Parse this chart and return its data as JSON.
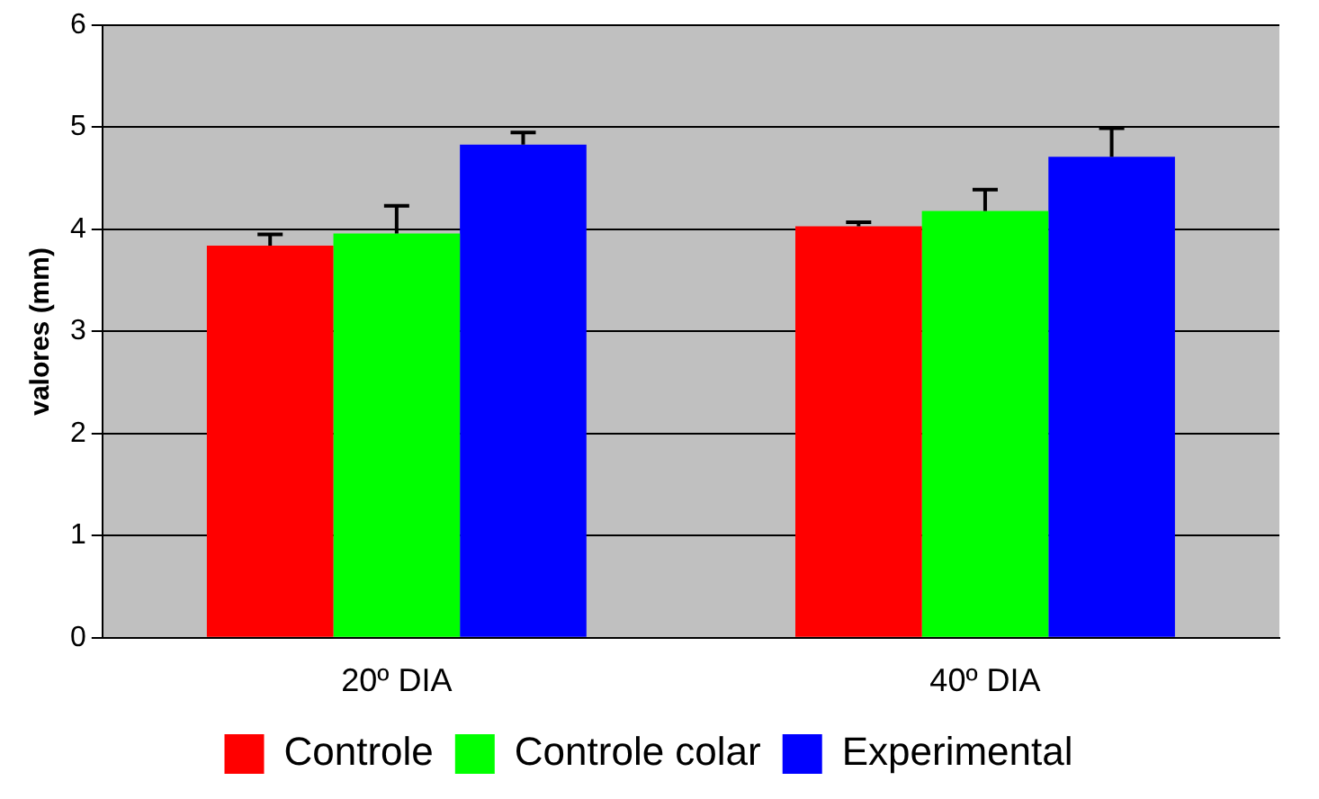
{
  "chart_data": {
    "type": "bar",
    "ylabel": "valores (mm)",
    "categories": [
      "20º DIA",
      "40º DIA"
    ],
    "series": [
      {
        "name": "Controle",
        "color": "#ff0000",
        "values": [
          3.84,
          4.03
        ],
        "errors": [
          [
            3.84,
            3.95
          ],
          [
            4.03,
            4.07
          ]
        ]
      },
      {
        "name": "Controle colar",
        "color": "#00ff00",
        "values": [
          3.96,
          4.18
        ],
        "errors": [
          [
            3.96,
            4.23
          ],
          [
            4.18,
            4.39
          ]
        ]
      },
      {
        "name": "Experimental",
        "color": "#0000ff",
        "values": [
          4.83,
          4.71
        ],
        "errors": [
          [
            4.83,
            4.95
          ],
          [
            4.71,
            4.99
          ]
        ]
      }
    ],
    "ylim": [
      0,
      6
    ],
    "yticks": [
      0,
      1,
      2,
      3,
      4,
      5,
      6
    ],
    "grid": "y",
    "legend": "bottom"
  }
}
